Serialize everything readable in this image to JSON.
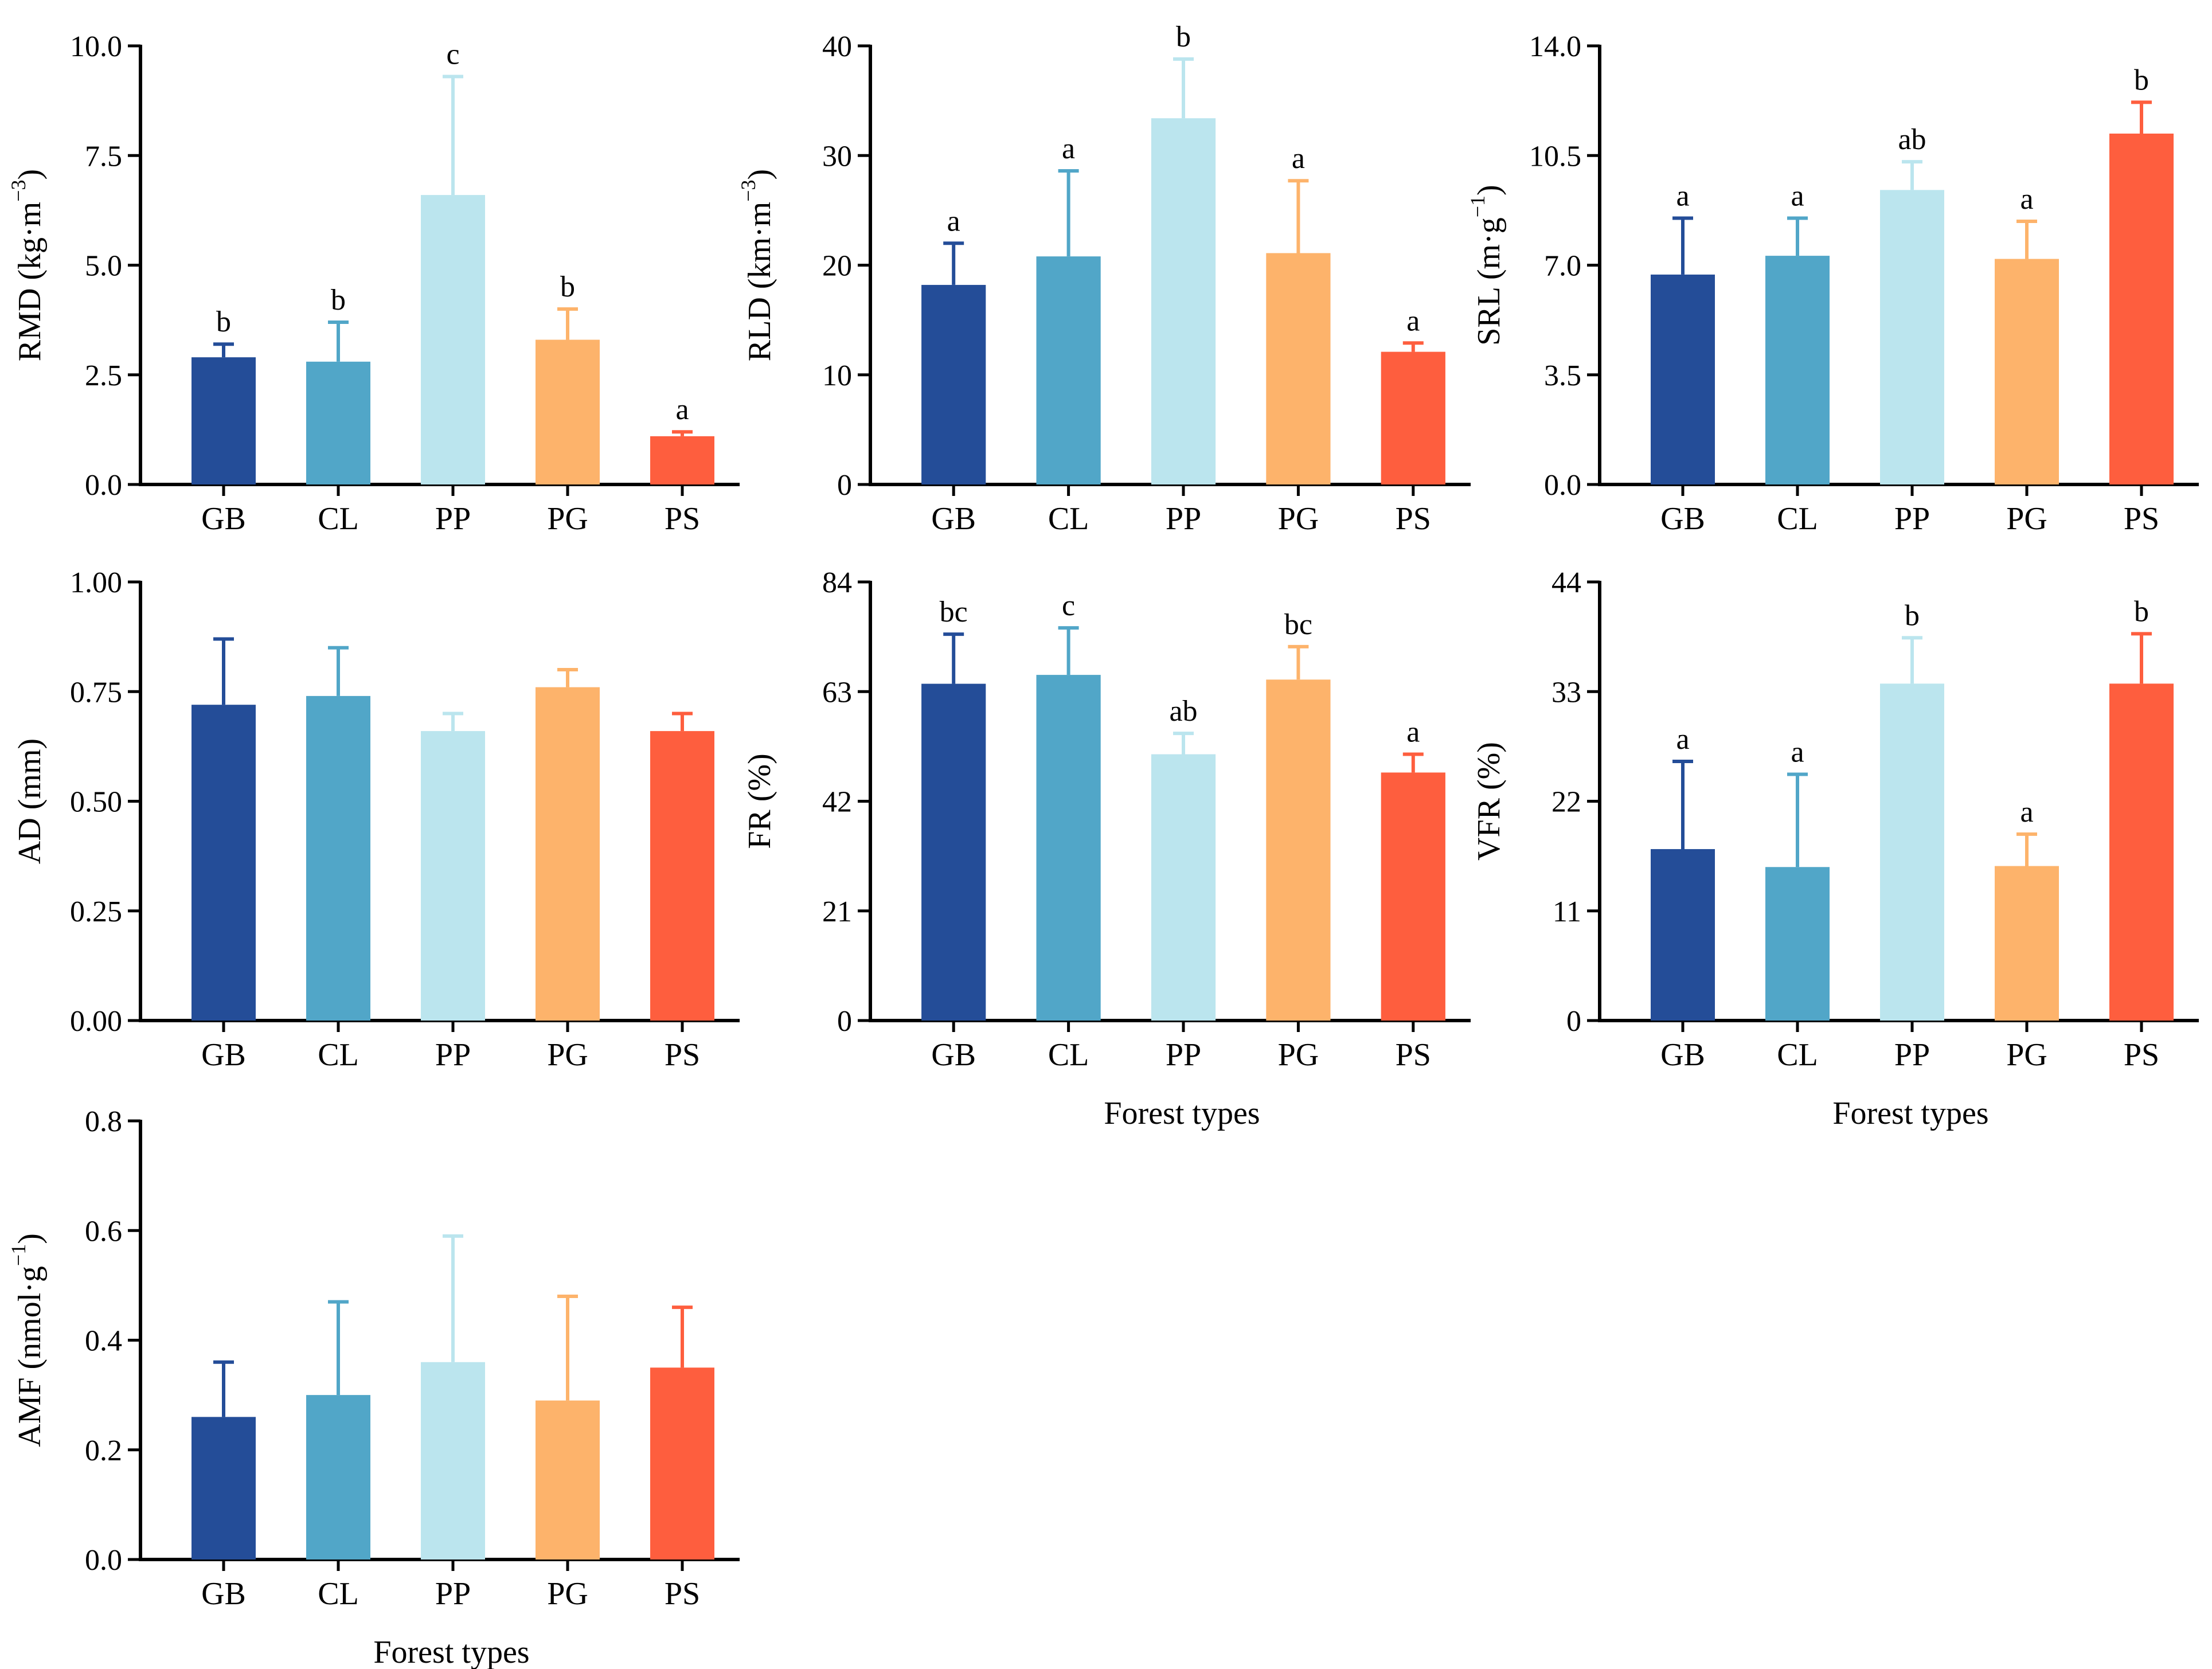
{
  "figure": {
    "categories": [
      "GB",
      "CL",
      "PP",
      "PG",
      "PS"
    ],
    "colors": {
      "GB": "#244d98",
      "CL": "#51a6c8",
      "PP": "#bbe5ee",
      "PG": "#fdb36b",
      "PS": "#fe5e3e"
    },
    "xlabel": "Forest types"
  },
  "chart_data": [
    {
      "id": "rmd",
      "type": "bar",
      "ylabel_main": "RMD (kg·m",
      "ylabel_sup": "−3",
      "ylabel_tail": ")",
      "ylim": [
        0,
        10.0
      ],
      "yticks": [
        "0.0",
        "2.5",
        "5.0",
        "7.5",
        "10.0"
      ],
      "categories": [
        "GB",
        "CL",
        "PP",
        "PG",
        "PS"
      ],
      "values": [
        2.9,
        2.8,
        6.6,
        3.3,
        1.1
      ],
      "errors": [
        0.3,
        0.9,
        2.7,
        0.7,
        0.1
      ],
      "letters": [
        "b",
        "b",
        "c",
        "b",
        "a"
      ],
      "xlabel": ""
    },
    {
      "id": "rld",
      "type": "bar",
      "ylabel_main": "RLD (km·m",
      "ylabel_sup": "−3",
      "ylabel_tail": ")",
      "ylim": [
        0,
        40
      ],
      "yticks": [
        "0",
        "10",
        "20",
        "30",
        "40"
      ],
      "categories": [
        "GB",
        "CL",
        "PP",
        "PG",
        "PS"
      ],
      "values": [
        18.2,
        20.8,
        33.4,
        21.1,
        12.1
      ],
      "errors": [
        3.8,
        7.8,
        5.4,
        6.6,
        0.8
      ],
      "letters": [
        "a",
        "a",
        "b",
        "a",
        "a"
      ],
      "xlabel": ""
    },
    {
      "id": "srl",
      "type": "bar",
      "ylabel_main": "SRL (m·g",
      "ylabel_sup": "−1",
      "ylabel_tail": ")",
      "ylim": [
        0,
        14.0
      ],
      "yticks": [
        "0.0",
        "3.5",
        "7.0",
        "10.5",
        "14.0"
      ],
      "categories": [
        "GB",
        "CL",
        "PP",
        "PG",
        "PS"
      ],
      "values": [
        6.7,
        7.3,
        9.4,
        7.2,
        11.2
      ],
      "errors": [
        1.8,
        1.2,
        0.9,
        1.2,
        1.0
      ],
      "letters": [
        "a",
        "a",
        "ab",
        "a",
        "b"
      ],
      "xlabel": ""
    },
    {
      "id": "ad",
      "type": "bar",
      "ylabel_main": "AD (mm)",
      "ylabel_sup": "",
      "ylabel_tail": "",
      "ylim": [
        0,
        1.0
      ],
      "yticks": [
        "0.00",
        "0.25",
        "0.50",
        "0.75",
        "1.00"
      ],
      "categories": [
        "GB",
        "CL",
        "PP",
        "PG",
        "PS"
      ],
      "values": [
        0.72,
        0.74,
        0.66,
        0.76,
        0.66
      ],
      "errors": [
        0.15,
        0.11,
        0.04,
        0.04,
        0.04
      ],
      "letters": [
        "",
        "",
        "",
        "",
        ""
      ],
      "xlabel": ""
    },
    {
      "id": "fr",
      "type": "bar",
      "ylabel_main": "FR (%)",
      "ylabel_sup": "",
      "ylabel_tail": "",
      "ylim": [
        0,
        84
      ],
      "yticks": [
        "0",
        "21",
        "42",
        "63",
        "84"
      ],
      "categories": [
        "GB",
        "CL",
        "PP",
        "PG",
        "PS"
      ],
      "values": [
        64.5,
        66.2,
        51.0,
        65.3,
        47.5
      ],
      "errors": [
        9.5,
        9.0,
        4.0,
        6.3,
        3.5
      ],
      "letters": [
        "bc",
        "c",
        "ab",
        "bc",
        "a"
      ],
      "xlabel": "Forest types"
    },
    {
      "id": "vfr",
      "type": "bar",
      "ylabel_main": "VFR (%)",
      "ylabel_sup": "",
      "ylabel_tail": "",
      "ylim": [
        0,
        44
      ],
      "yticks": [
        "0",
        "11",
        "22",
        "33",
        "44"
      ],
      "categories": [
        "GB",
        "CL",
        "PP",
        "PG",
        "PS"
      ],
      "values": [
        17.2,
        15.4,
        33.8,
        15.5,
        33.8
      ],
      "errors": [
        8.8,
        9.3,
        4.6,
        3.2,
        5.0
      ],
      "letters": [
        "a",
        "a",
        "b",
        "a",
        "b"
      ],
      "xlabel": "Forest types"
    },
    {
      "id": "amf",
      "type": "bar",
      "ylabel_main": "AMF (nmol·g",
      "ylabel_sup": "−1",
      "ylabel_tail": ")",
      "ylim": [
        0,
        0.8
      ],
      "yticks": [
        "0.0",
        "0.2",
        "0.4",
        "0.6",
        "0.8"
      ],
      "categories": [
        "GB",
        "CL",
        "PP",
        "PG",
        "PS"
      ],
      "values": [
        0.26,
        0.3,
        0.36,
        0.29,
        0.35
      ],
      "errors": [
        0.1,
        0.17,
        0.23,
        0.19,
        0.11
      ],
      "letters": [
        "",
        "",
        "",
        "",
        ""
      ],
      "xlabel": "Forest types"
    }
  ]
}
